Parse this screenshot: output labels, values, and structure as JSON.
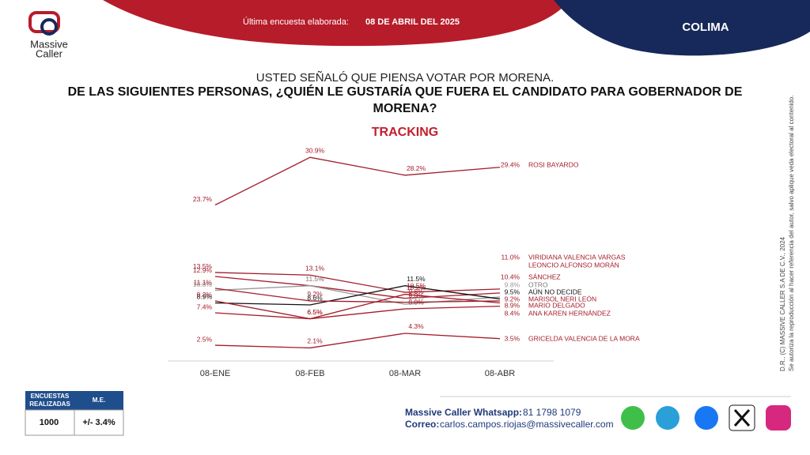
{
  "header": {
    "note_prefix": "Última encuesta elaborada:",
    "note_date": "08 DE ABRIL DEL 2025",
    "state": "COLIMA",
    "logo_top": "Massive",
    "logo_bottom": "Caller"
  },
  "chart_data": {
    "type": "line",
    "subtitle": "USTED SEÑALÓ QUE PIENSA VOTAR POR MORENA.",
    "title": "DE LAS SIGUIENTES PERSONAS, ¿QUIÉN LE GUSTARÍA QUE FUERA EL CANDIDATO PARA GOBERNADOR DE MORENA?",
    "label": "TRACKING",
    "categories": [
      "08-ENE",
      "08-FEB",
      "08-MAR",
      "08-ABR"
    ],
    "ylim": [
      0,
      32
    ],
    "series": [
      {
        "name": "ROSI BAYARDO",
        "color": "#a31c2a",
        "values": [
          23.7,
          30.9,
          28.2,
          29.4
        ],
        "value_labels": [
          "23.7%",
          "30.9%",
          "28.2%",
          "29.4%"
        ]
      },
      {
        "name": "VIRIDIANA VALENCIA VARGAS",
        "color": "#a31c2a",
        "values": [
          13.5,
          13.1,
          10.5,
          11.0
        ],
        "value_labels": [
          "13.5%",
          "13.1%",
          "10.5%",
          "11.0%"
        ]
      },
      {
        "name": "LEONCIO ALFONSO MORÁN",
        "color": "#a31c2a",
        "values": [
          null,
          null,
          null,
          null
        ]
      },
      {
        "name": "SÁNCHEZ",
        "color": "#a31c2a",
        "values": [
          12.9,
          11.5,
          9.6,
          10.4
        ],
        "value_labels": [
          "12.9%",
          "11.5%",
          "9.6%",
          "10.4%"
        ]
      },
      {
        "name": "OTRO",
        "color": "#9a9a9a",
        "values": [
          10.8,
          11.5,
          8.7,
          9.8
        ],
        "value_labels": [
          "10.8%",
          "11.5%",
          "8.7%",
          "9.8%"
        ]
      },
      {
        "name": "AÚN NO DECIDE",
        "color": "#111111",
        "values": [
          8.9,
          8.6,
          11.5,
          9.5
        ],
        "value_labels": [
          "8.9%",
          "8.6%",
          "11.5%",
          "9.5%"
        ]
      },
      {
        "name": "MARISOL NERI LEÓN",
        "color": "#a31c2a",
        "values": [
          11.1,
          9.2,
          9.0,
          9.2
        ],
        "value_labels": [
          "11.1%",
          "9.2%",
          "9.0%",
          "9.2%"
        ]
      },
      {
        "name": "MARIO DELGADO",
        "color": "#a31c2a",
        "values": [
          9.2,
          6.5,
          10.2,
          8.9
        ],
        "value_labels": [
          "9.2%",
          "6.5%",
          "10.2%",
          "8.9%"
        ]
      },
      {
        "name": "ANA KAREN HERNÁNDEZ",
        "color": "#a31c2a",
        "values": [
          7.4,
          6.5,
          8.0,
          8.4
        ],
        "value_labels": [
          "7.4%",
          "6.5%",
          "8.0%",
          "8.4%"
        ]
      },
      {
        "name": "GRICELDA VALENCIA DE LA MORA",
        "color": "#a31c2a",
        "values": [
          2.5,
          2.1,
          4.3,
          3.5
        ],
        "value_labels": [
          "2.5%",
          "2.1%",
          "4.3%",
          "3.5%"
        ]
      }
    ]
  },
  "side_note": {
    "line1": "D.R., (C) MASSIVE CALLER S.A DE C.V., 2024",
    "line2": "Se autoriza la reproducción al hacer referencia del autor, salvo aplique veda electoral al contenido."
  },
  "table": {
    "headers": [
      "ENCUESTAS REALIZADAS",
      "M.E."
    ],
    "rows": [
      [
        "1000",
        "+/- 3.4%"
      ]
    ]
  },
  "contact": {
    "whatsapp_label": "Massive Caller Whatsapp:",
    "whatsapp": "81 1798 1079",
    "email_label": "Correo:",
    "email": "carlos.campos.riojas@massivecaller.com"
  }
}
